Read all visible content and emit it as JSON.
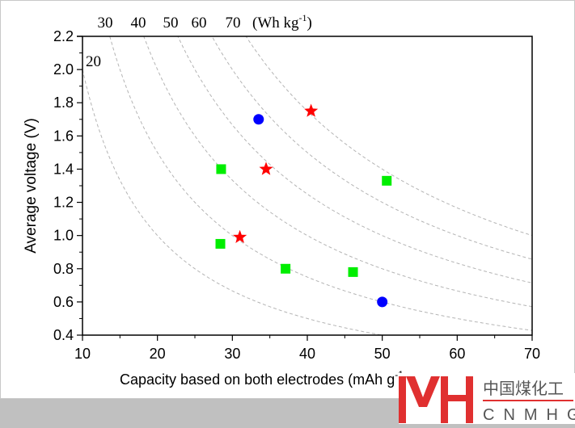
{
  "chart_data": {
    "type": "scatter",
    "title": "",
    "xlabel": "Capacity based on both electrodes (mAh g",
    "xlabel_sup": "-1",
    "xlabel_end": ")",
    "ylabel": "Average voltage (V)",
    "xlim": [
      10,
      70
    ],
    "ylim": [
      0.4,
      2.2
    ],
    "xticks": [
      10,
      20,
      30,
      40,
      50,
      60,
      70
    ],
    "yticks": [
      "0.4",
      "0.6",
      "0.8",
      "1.0",
      "1.2",
      "1.4",
      "1.6",
      "1.8",
      "2.0",
      "2.2"
    ],
    "grid": false,
    "energy_curves": {
      "values": [
        20,
        30,
        40,
        50,
        60,
        70
      ],
      "top_labels": [
        "30",
        "40",
        "50",
        "60",
        "70"
      ],
      "unit_label": "(Wh kg",
      "unit_sup": "-1",
      "unit_end": ")",
      "left_label": "20",
      "color": "#b4b4b4"
    },
    "series": [
      {
        "name": "blue-circles",
        "marker": "circle",
        "color": "#0000ff",
        "points": [
          [
            33.5,
            1.7
          ],
          [
            50.0,
            0.6
          ]
        ]
      },
      {
        "name": "red-stars",
        "marker": "star",
        "color": "#ff0000",
        "points": [
          [
            40.5,
            1.75
          ],
          [
            34.5,
            1.4
          ],
          [
            31.0,
            0.99
          ]
        ]
      },
      {
        "name": "green-squares",
        "marker": "square",
        "color": "#00ee00",
        "points": [
          [
            28.5,
            1.4
          ],
          [
            50.6,
            1.33
          ],
          [
            28.4,
            0.95
          ],
          [
            37.1,
            0.8
          ],
          [
            46.1,
            0.78
          ]
        ]
      }
    ]
  },
  "watermark": {
    "chinese": "中国煤化工",
    "latin": "CNMHG",
    "color": "#e03030"
  }
}
